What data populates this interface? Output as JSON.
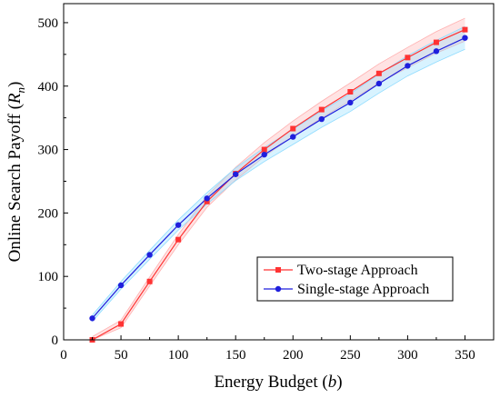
{
  "chart_data": {
    "type": "line",
    "xlabel_prefix": "Energy Budget (",
    "xlabel_var": "b",
    "xlabel_suffix": ")",
    "ylabel_prefix": "Online Search Payoff (",
    "ylabel_var": "R",
    "ylabel_sub": "n",
    "ylabel_suffix": ")",
    "xlim": [
      0,
      375
    ],
    "ylim": [
      0,
      530
    ],
    "xticks": [
      0,
      50,
      100,
      150,
      200,
      250,
      300,
      350
    ],
    "yticks": [
      0,
      100,
      200,
      300,
      400,
      500
    ],
    "grid": false,
    "legend_position": "bottom-right",
    "x": [
      25,
      50,
      75,
      100,
      125,
      150,
      175,
      200,
      225,
      250,
      275,
      300,
      325,
      350
    ],
    "series": [
      {
        "name": "Two-stage Approach",
        "color": "#ff3333",
        "band_color": "#ffb0b0",
        "marker": "square",
        "values": [
          0,
          25,
          92,
          158,
          218,
          262,
          300,
          333,
          363,
          391,
          420,
          445,
          469,
          489
        ],
        "band": [
          5,
          6,
          7,
          8,
          9,
          10,
          11,
          12,
          13,
          14,
          15,
          16,
          17,
          18
        ]
      },
      {
        "name": "Single-stage Approach",
        "color": "#1f1fdd",
        "band_color": "#8fdcff",
        "marker": "circle",
        "values": [
          34,
          86,
          134,
          181,
          223,
          261,
          292,
          320,
          348,
          374,
          404,
          432,
          455,
          476
        ],
        "band": [
          5,
          6,
          7,
          8,
          9,
          10,
          11,
          12,
          13,
          14,
          15,
          16,
          17,
          18
        ]
      }
    ]
  }
}
